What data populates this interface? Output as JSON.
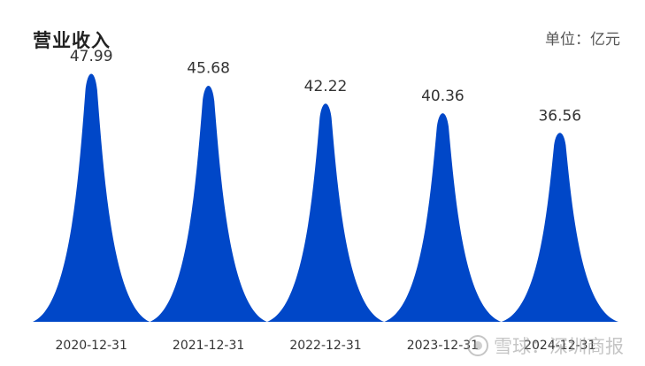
{
  "chart_data": {
    "type": "bar",
    "title": "营业收入",
    "unit": "单位：亿元",
    "categories": [
      "2020-12-31",
      "2021-12-31",
      "2022-12-31",
      "2023-12-31",
      "2024-12-31"
    ],
    "values": [
      47.99,
      45.68,
      42.22,
      40.36,
      36.56
    ],
    "value_labels": [
      "47.99",
      "45.68",
      "42.22",
      "40.36",
      "36.56"
    ],
    "ylim": [
      0,
      52
    ],
    "grid": false,
    "bar_color": "#0047C8"
  },
  "watermark": {
    "text": "雪球：深圳商报",
    "icon": "snowball-logo-icon"
  }
}
